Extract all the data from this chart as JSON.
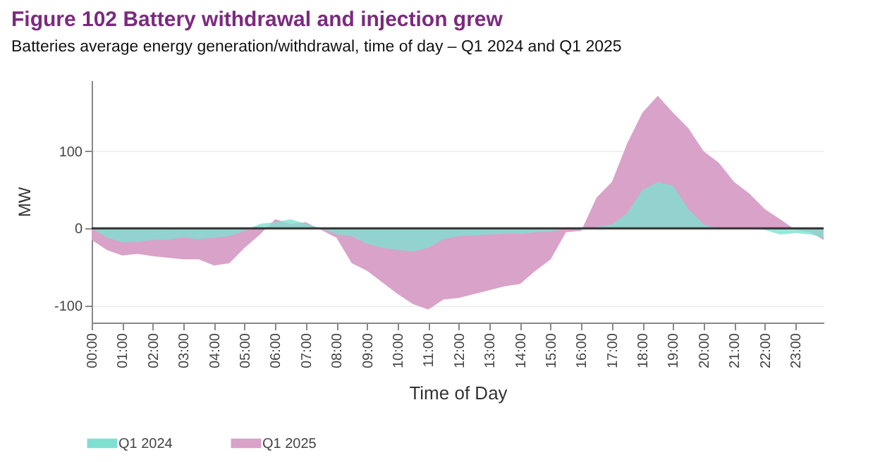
{
  "chart_data": {
    "type": "area",
    "title": "Figure 102  Battery withdrawal and injection grew",
    "subtitle": "Batteries average energy generation/withdrawal, time of day – Q1 2024 and Q1 2025",
    "xlabel": "Time of Day",
    "ylabel": "MW",
    "x": [
      0,
      0.5,
      1,
      1.5,
      2,
      2.5,
      3,
      3.5,
      4,
      4.5,
      5,
      5.5,
      6,
      6.5,
      7,
      7.5,
      8,
      8.5,
      9,
      9.5,
      10,
      10.5,
      11,
      11.5,
      12,
      12.5,
      13,
      13.5,
      14,
      14.5,
      15,
      15.5,
      16,
      16.5,
      17,
      17.5,
      18,
      18.5,
      19,
      19.5,
      20,
      20.5,
      21,
      21.5,
      22,
      22.5,
      23,
      23.5,
      23.92
    ],
    "series": [
      {
        "name": "Q1 2024",
        "color": "#7fe0d2",
        "values": [
          0,
          -12,
          -18,
          -17,
          -15,
          -14,
          -12,
          -14,
          -12,
          -10,
          -3,
          6,
          8,
          12,
          6,
          0,
          -8,
          -10,
          -20,
          -25,
          -28,
          -30,
          -25,
          -14,
          -10,
          -9,
          -8,
          -7,
          -7,
          -5,
          -4,
          0,
          -2,
          2,
          5,
          20,
          50,
          60,
          55,
          25,
          5,
          0,
          0,
          0,
          -2,
          -8,
          -6,
          -8,
          -12
        ]
      },
      {
        "name": "Q1 2025",
        "color": "#d9a2c8",
        "values": [
          -15,
          -28,
          -35,
          -33,
          -36,
          -38,
          -40,
          -40,
          -48,
          -45,
          -25,
          -8,
          12,
          6,
          8,
          -2,
          -12,
          -45,
          -55,
          -70,
          -85,
          -98,
          -105,
          -92,
          -90,
          -85,
          -80,
          -75,
          -72,
          -55,
          -40,
          -5,
          -3,
          40,
          60,
          110,
          150,
          172,
          150,
          130,
          100,
          85,
          60,
          45,
          25,
          12,
          -2,
          -5,
          -15
        ]
      }
    ],
    "xlim": [
      0,
      23.92
    ],
    "xticks": [
      {
        "value": 0,
        "label": "00:00"
      },
      {
        "value": 1,
        "label": "01:00"
      },
      {
        "value": 2,
        "label": "02:00"
      },
      {
        "value": 3,
        "label": "03:00"
      },
      {
        "value": 4,
        "label": "04:00"
      },
      {
        "value": 5,
        "label": "05:00"
      },
      {
        "value": 6,
        "label": "06:00"
      },
      {
        "value": 7,
        "label": "07:00"
      },
      {
        "value": 8,
        "label": "08:00"
      },
      {
        "value": 9,
        "label": "09:00"
      },
      {
        "value": 10,
        "label": "10:00"
      },
      {
        "value": 11,
        "label": "11:00"
      },
      {
        "value": 12,
        "label": "12:00"
      },
      {
        "value": 13,
        "label": "13:00"
      },
      {
        "value": 14,
        "label": "14:00"
      },
      {
        "value": 15,
        "label": "15:00"
      },
      {
        "value": 16,
        "label": "16:00"
      },
      {
        "value": 17,
        "label": "17:00"
      },
      {
        "value": 18,
        "label": "18:00"
      },
      {
        "value": 19,
        "label": "19:00"
      },
      {
        "value": 20,
        "label": "20:00"
      },
      {
        "value": 21,
        "label": "21:00"
      },
      {
        "value": 22,
        "label": "22:00"
      },
      {
        "value": 23,
        "label": "23:00"
      }
    ],
    "ylim": [
      -122,
      192
    ],
    "yticks": [
      -100,
      0,
      100
    ],
    "ref_lines": [
      {
        "axis": "y",
        "value": 0,
        "color": "#333333"
      }
    ],
    "grid": "y",
    "legend": "bottom"
  }
}
